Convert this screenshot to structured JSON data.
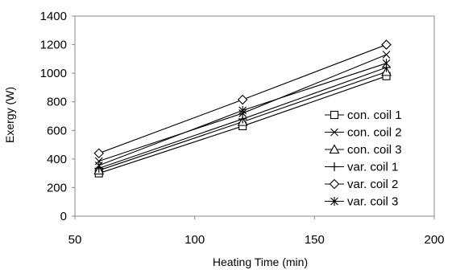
{
  "chart_data": {
    "type": "line",
    "title": "",
    "xlabel": "Heating Time (min)",
    "ylabel": "Exergy (W)",
    "xlim": [
      50,
      200
    ],
    "ylim": [
      0,
      1400
    ],
    "x_ticks": [
      50,
      100,
      150,
      200
    ],
    "y_ticks": [
      0,
      200,
      400,
      600,
      800,
      1000,
      1200,
      1400
    ],
    "grid": false,
    "legend_position": "bottom-right",
    "line_color": "#000000",
    "series": [
      {
        "name": "con. coil 1",
        "marker": "square",
        "x": [
          60,
          120,
          180
        ],
        "y": [
          300,
          630,
          980
        ]
      },
      {
        "name": "con. coil 2",
        "marker": "x",
        "x": [
          60,
          120,
          180
        ],
        "y": [
          385,
          720,
          1130
        ]
      },
      {
        "name": "con. coil 3",
        "marker": "triangle",
        "x": [
          60,
          120,
          180
        ],
        "y": [
          320,
          660,
          1010
        ]
      },
      {
        "name": "var. coil 1",
        "marker": "plus",
        "x": [
          60,
          120,
          180
        ],
        "y": [
          335,
          680,
          1040
        ]
      },
      {
        "name": "var. coil 2",
        "marker": "diamond",
        "x": [
          60,
          120,
          180
        ],
        "y": [
          440,
          815,
          1200
        ]
      },
      {
        "name": "var. coil 3",
        "marker": "asterisk",
        "x": [
          60,
          120,
          180
        ],
        "y": [
          355,
          740,
          1070
        ]
      }
    ]
  }
}
